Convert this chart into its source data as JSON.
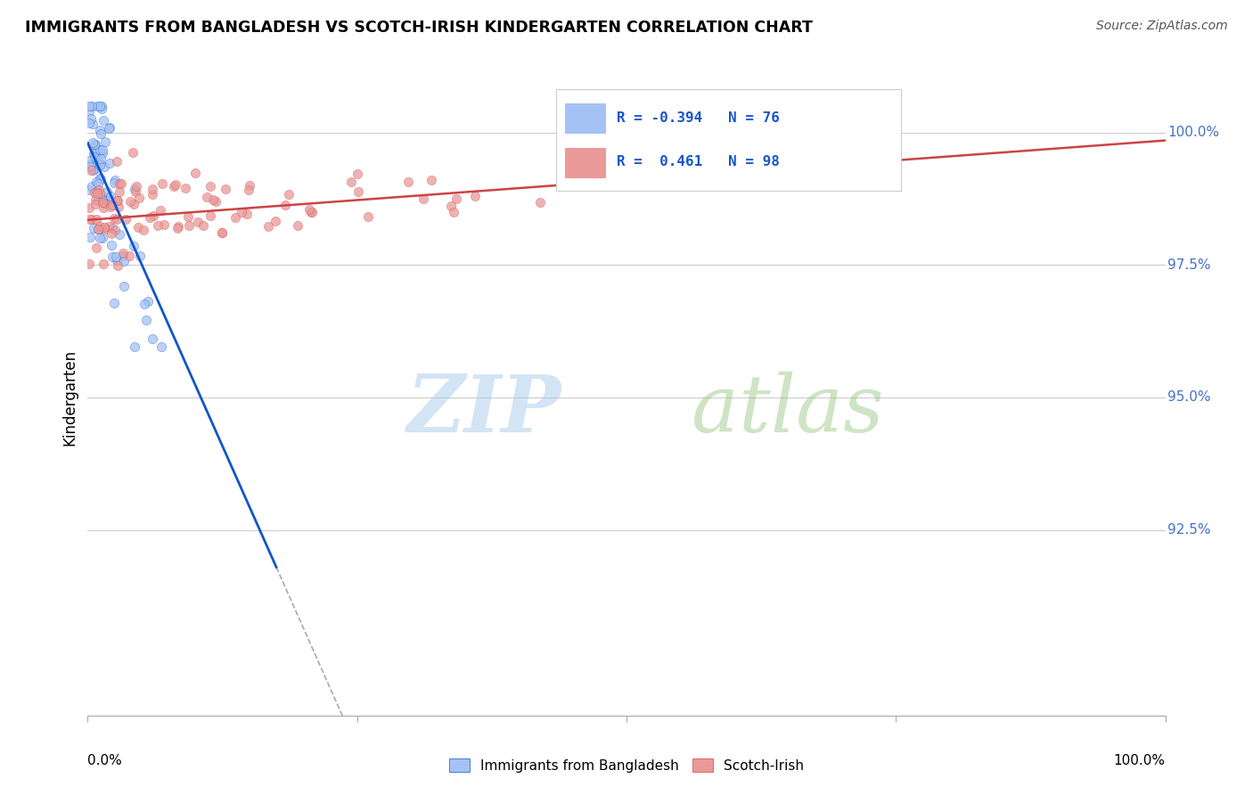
{
  "title": "IMMIGRANTS FROM BANGLADESH VS SCOTCH-IRISH KINDERGARTEN CORRELATION CHART",
  "source": "Source: ZipAtlas.com",
  "ylabel": "Kindergarten",
  "y_ticks": [
    92.5,
    95.0,
    97.5,
    100.0
  ],
  "y_tick_labels": [
    "92.5%",
    "95.0%",
    "97.5%",
    "100.0%"
  ],
  "legend_label1": "Immigrants from Bangladesh",
  "legend_label2": "Scotch-Irish",
  "R_blue": -0.394,
  "N_blue": 76,
  "R_pink": 0.461,
  "N_pink": 98,
  "blue_color": "#a4c2f4",
  "pink_color": "#ea9999",
  "blue_line_color": "#1155cc",
  "pink_line_color": "#cc4444",
  "watermark_zip": "ZIP",
  "watermark_atlas": "atlas",
  "watermark_color_zip": "#9fc5e8",
  "watermark_color_atlas": "#b6d7a8",
  "grid_color": "#cccccc",
  "dashed_color": "#aaaaaa"
}
